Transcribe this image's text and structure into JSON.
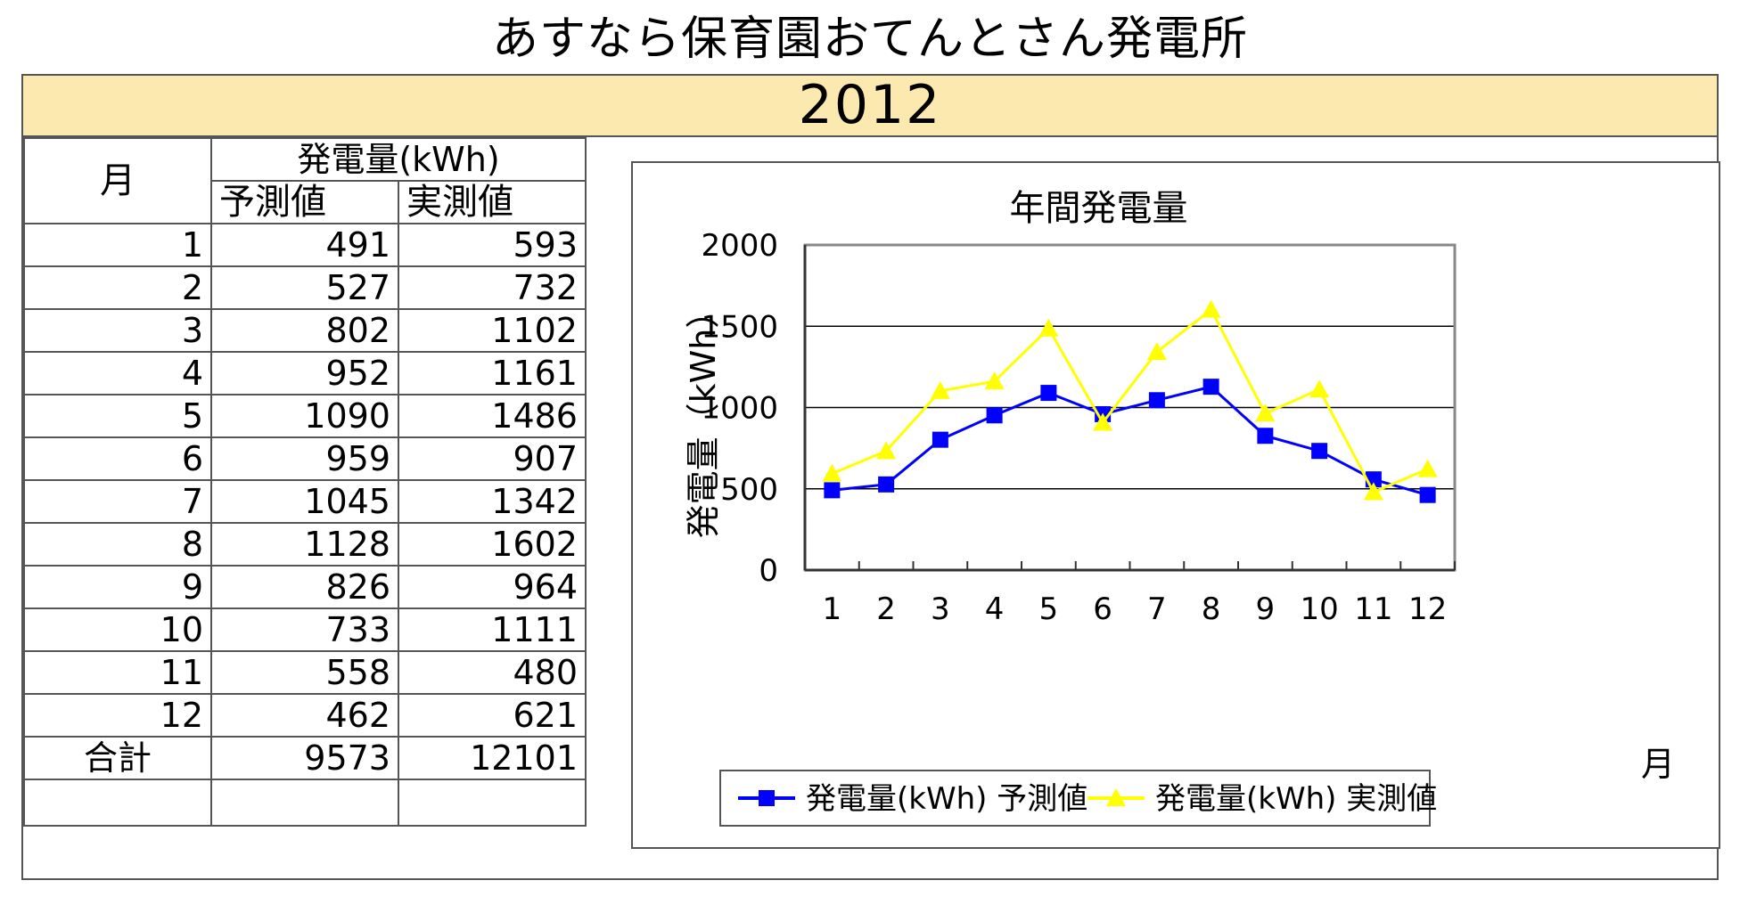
{
  "page_title": "あすなら保育園おてんとさん発電所",
  "year": "2012",
  "table": {
    "month_header": "月",
    "energy_header": "発電量(kWh)",
    "forecast_header": "予測値",
    "actual_header": "実測値",
    "rows": [
      {
        "month": "1",
        "forecast": "491",
        "actual": "593"
      },
      {
        "month": "2",
        "forecast": "527",
        "actual": "732"
      },
      {
        "month": "3",
        "forecast": "802",
        "actual": "1102"
      },
      {
        "month": "4",
        "forecast": "952",
        "actual": "1161"
      },
      {
        "month": "5",
        "forecast": "1090",
        "actual": "1486"
      },
      {
        "month": "6",
        "forecast": "959",
        "actual": "907"
      },
      {
        "month": "7",
        "forecast": "1045",
        "actual": "1342"
      },
      {
        "month": "8",
        "forecast": "1128",
        "actual": "1602"
      },
      {
        "month": "9",
        "forecast": "826",
        "actual": "964"
      },
      {
        "month": "10",
        "forecast": "733",
        "actual": "1111"
      },
      {
        "month": "11",
        "forecast": "558",
        "actual": "480"
      },
      {
        "month": "12",
        "forecast": "462",
        "actual": "621"
      }
    ],
    "total_label": "合計",
    "total_forecast": "9573",
    "total_actual": "12101"
  },
  "chart_data": {
    "type": "line",
    "title": "年間発電量",
    "xlabel": "月",
    "ylabel": "発電量（kWh）",
    "categories": [
      "1",
      "2",
      "3",
      "4",
      "5",
      "6",
      "7",
      "8",
      "9",
      "10",
      "11",
      "12"
    ],
    "ylim": [
      0,
      2000
    ],
    "yticks": [
      0,
      500,
      1000,
      1500,
      2000
    ],
    "grid": true,
    "legend_position": "bottom",
    "series": [
      {
        "name": "発電量(kWh) 予測値",
        "color": "#0000ff",
        "marker": "square",
        "values": [
          491,
          527,
          802,
          952,
          1090,
          959,
          1045,
          1128,
          826,
          733,
          558,
          462
        ]
      },
      {
        "name": "発電量(kWh) 実測値",
        "color": "#ffff00",
        "marker": "triangle",
        "values": [
          593,
          732,
          1102,
          1161,
          1486,
          907,
          1342,
          1602,
          964,
          1111,
          480,
          621
        ]
      }
    ]
  }
}
